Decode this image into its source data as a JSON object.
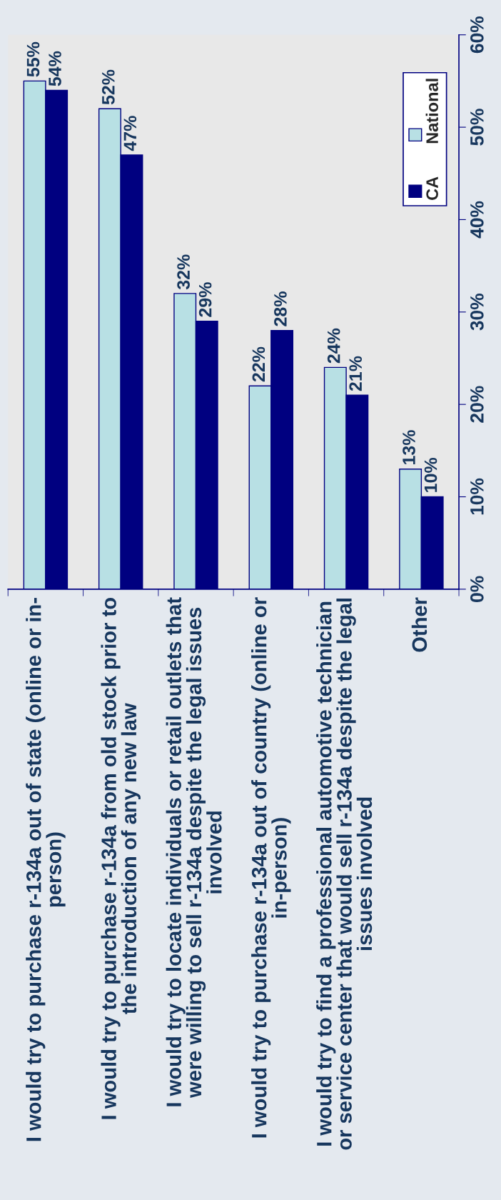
{
  "chart_data": {
    "type": "bar",
    "categories": [
      "I would try to purchase r-134a out of state (online or in-\nperson)",
      "I would try to purchase r-134a from old stock prior to\nthe introduction of any new law",
      "I would try to locate individuals or retail outlets that\nwere willing to sell r-134a despite the legal issues\ninvolved",
      "I would try to purchase r-134a out of country (online or\nin-person)",
      "I would try to find a professional automotive technician\nor service center that would sell r-134a despite the legal\nissues involved",
      "Other"
    ],
    "series": [
      {
        "name": "National",
        "color": "#b8e0e4",
        "values": [
          55,
          52,
          32,
          22,
          24,
          13
        ],
        "value_labels": [
          "55%",
          "52%",
          "32%",
          "22%",
          "24%",
          "13%"
        ]
      },
      {
        "name": "CA",
        "color": "#000080",
        "values": [
          54,
          47,
          29,
          28,
          21,
          10
        ],
        "value_labels": [
          "54%",
          "47%",
          "29%",
          "28%",
          "21%",
          "10%"
        ]
      }
    ],
    "ylim": [
      0,
      60
    ],
    "yticks": [
      {
        "value": 0,
        "label": "0%"
      },
      {
        "value": 10,
        "label": "10%"
      },
      {
        "value": 20,
        "label": "20%"
      },
      {
        "value": 30,
        "label": "30%"
      },
      {
        "value": 40,
        "label": "40%"
      },
      {
        "value": 50,
        "label": "50%"
      },
      {
        "value": 60,
        "label": "60%"
      }
    ],
    "grid": false,
    "legend": "top right"
  }
}
